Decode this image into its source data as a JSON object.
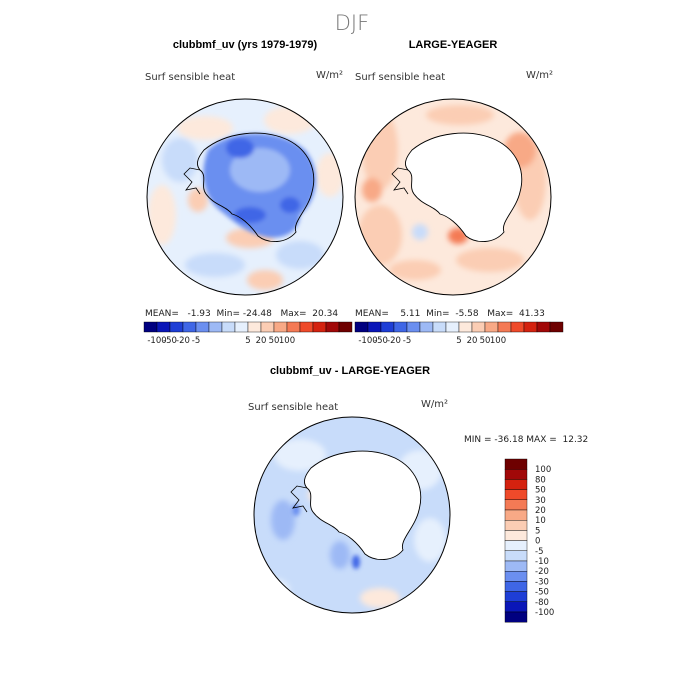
{
  "page_title": "DJF",
  "colors": {
    "levels": [
      "#000080",
      "#0a16b8",
      "#1e3ed6",
      "#3f66e6",
      "#6b8ff0",
      "#9db9f5",
      "#c8dcfa",
      "#e6f0fd",
      "#fde9dc",
      "#fbcdb4",
      "#f8a986",
      "#f47a55",
      "#ef4a2a",
      "#d4220f",
      "#a10808",
      "#6e0000"
    ],
    "land": "#ffffff",
    "outline": "#000000"
  },
  "panels": [
    {
      "id": "model",
      "title": "clubbmf_uv (yrs 1979-1979)",
      "variable": "Surf sensible heat",
      "units": "W/m²",
      "stats_line": "MEAN=   -1.93  Min= -24.48   Max=  20.34",
      "stats": {
        "mean": -1.93,
        "min": -24.48,
        "max": 20.34
      },
      "colorbar_ticks": [
        "-100",
        "-50",
        "-20",
        "-5",
        "5",
        "20",
        "50",
        "100"
      ]
    },
    {
      "id": "obs",
      "title": "LARGE-YEAGER",
      "variable": "Surf sensible heat",
      "units": "W/m²",
      "stats_line": "MEAN=    5.11  Min=  -5.58   Max=  41.33",
      "stats": {
        "mean": 5.11,
        "min": -5.58,
        "max": 41.33
      },
      "colorbar_ticks": [
        "-100",
        "-50",
        "-20",
        "-5",
        "5",
        "20",
        "50",
        "100"
      ]
    },
    {
      "id": "diff",
      "title": "clubbmf_uv - LARGE-YEAGER",
      "variable": "Surf sensible heat",
      "units": "W/m²",
      "stats_line": "MIN = -36.18 MAX =  12.32",
      "stats": {
        "min": -36.18,
        "max": 12.32
      },
      "colorbar_ticks": [
        "100",
        "80",
        "50",
        "30",
        "20",
        "10",
        "5",
        "0",
        "-5",
        "-10",
        "-20",
        "-30",
        "-50",
        "-80",
        "-100"
      ]
    }
  ],
  "chart_data": [
    {
      "type": "heatmap",
      "projection": "south polar stereographic",
      "title": "clubbmf_uv (yrs 1979-1979)",
      "variable": "Surf sensible heat",
      "units": "W/m²",
      "mean": -1.93,
      "min": -24.48,
      "max": 20.34,
      "contour_levels": [
        -100,
        -50,
        -20,
        -5,
        5,
        20,
        50,
        100
      ]
    },
    {
      "type": "heatmap",
      "projection": "south polar stereographic",
      "title": "LARGE-YEAGER",
      "variable": "Surf sensible heat",
      "units": "W/m²",
      "mean": 5.11,
      "min": -5.58,
      "max": 41.33,
      "contour_levels": [
        -100,
        -50,
        -20,
        -5,
        5,
        20,
        50,
        100
      ]
    },
    {
      "type": "heatmap",
      "projection": "south polar stereographic",
      "title": "clubbmf_uv - LARGE-YEAGER",
      "variable": "Surf sensible heat",
      "units": "W/m²",
      "min": -36.18,
      "max": 12.32,
      "contour_levels": [
        -100,
        -80,
        -50,
        -30,
        -20,
        -10,
        -5,
        0,
        5,
        10,
        20,
        30,
        50,
        80,
        100
      ]
    }
  ]
}
